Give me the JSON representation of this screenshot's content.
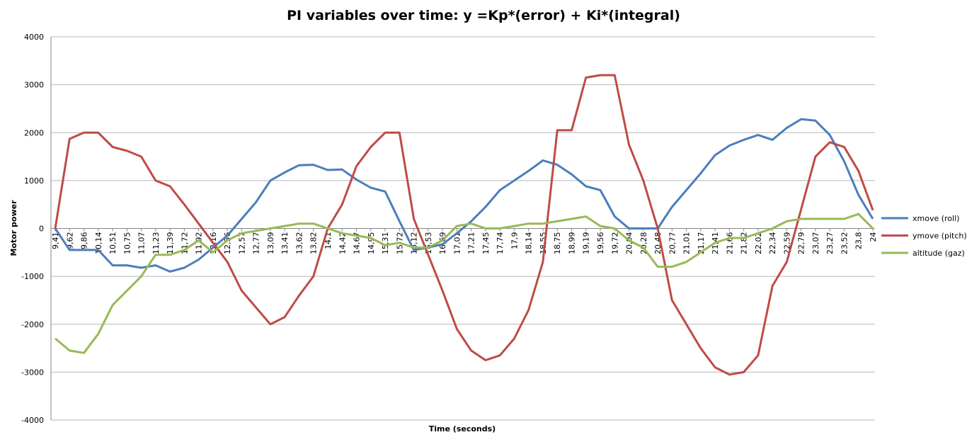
{
  "chart_data": {
    "type": "line",
    "title": "PI variables over time: y =Kp*(error) + Ki*(integral)",
    "x_label": "Time (seconds)",
    "y_label": "Motor power",
    "categories": [
      "9,41",
      "9,62",
      "9,86",
      "10,14",
      "10,51",
      "10,75",
      "11,07",
      "11,23",
      "11,39",
      "11,72",
      "11,92",
      "12,16",
      "12,36",
      "12,57",
      "12,77",
      "13,09",
      "13,41",
      "13,62",
      "13,82",
      "14,1",
      "14,42",
      "14,67",
      "14,95",
      "15,31",
      "15,72",
      "16,12",
      "16,53",
      "16,69",
      "17,01",
      "17,21",
      "17,45",
      "17,74",
      "17,9",
      "18,14",
      "18,55",
      "18,75",
      "18,99",
      "19,19",
      "19,56",
      "19,72",
      "20,04",
      "20,28",
      "20,48",
      "20,77",
      "21,01",
      "21,17",
      "21,41",
      "21,66",
      "21,82",
      "22,02",
      "22,34",
      "22,59",
      "22,79",
      "23,07",
      "23,27",
      "23,52",
      "23,8",
      "24"
    ],
    "series": [
      {
        "name": "xmove (roll)",
        "color": "#4a7ebb",
        "values": [
          0,
          -450,
          -450,
          -450,
          -770,
          -770,
          -820,
          -770,
          -900,
          -820,
          -650,
          -400,
          -150,
          200,
          550,
          1000,
          1170,
          1320,
          1330,
          1220,
          1230,
          1020,
          850,
          770,
          150,
          -450,
          -400,
          -330,
          -100,
          150,
          450,
          800,
          1000,
          1200,
          1420,
          1330,
          1130,
          880,
          800,
          250,
          0,
          0,
          0,
          450,
          800,
          1150,
          1530,
          1730,
          1850,
          1950,
          1850,
          2100,
          2280,
          2250,
          1950,
          1400,
          700,
          200
        ]
      },
      {
        "name": "ymove (pitch)",
        "color": "#be4b48",
        "values": [
          0,
          1870,
          2000,
          2000,
          1700,
          1620,
          1500,
          1000,
          880,
          500,
          100,
          -300,
          -700,
          -1300,
          -1650,
          -2000,
          -1850,
          -1400,
          -1000,
          0,
          500,
          1300,
          1700,
          2000,
          2000,
          200,
          -550,
          -1300,
          -2100,
          -2550,
          -2750,
          -2650,
          -2300,
          -1700,
          -700,
          2050,
          2050,
          3150,
          3200,
          3200,
          1750,
          1000,
          0,
          -1500,
          -2000,
          -2500,
          -2900,
          -3050,
          -3000,
          -2650,
          -1200,
          -700,
          400,
          1500,
          1800,
          1700,
          1200,
          380
        ]
      },
      {
        "name": "altitude (gaz)",
        "color": "#98b954",
        "values": [
          -2300,
          -2550,
          -2600,
          -2200,
          -1600,
          -1300,
          -1000,
          -550,
          -550,
          -450,
          -250,
          -500,
          -250,
          -100,
          -50,
          0,
          50,
          100,
          100,
          0,
          -100,
          -150,
          -200,
          -350,
          -300,
          -400,
          -400,
          -250,
          50,
          100,
          0,
          0,
          50,
          100,
          100,
          150,
          200,
          250,
          50,
          0,
          -250,
          -400,
          -800,
          -800,
          -700,
          -500,
          -300,
          -200,
          -200,
          -100,
          0,
          150,
          200,
          200,
          200,
          200,
          300,
          0
        ]
      }
    ],
    "ylim": [
      -4000,
      4000
    ],
    "yticks": [
      -4000,
      -3000,
      -2000,
      -1000,
      0,
      1000,
      2000,
      3000,
      4000
    ],
    "grid": true,
    "legend": "right"
  }
}
